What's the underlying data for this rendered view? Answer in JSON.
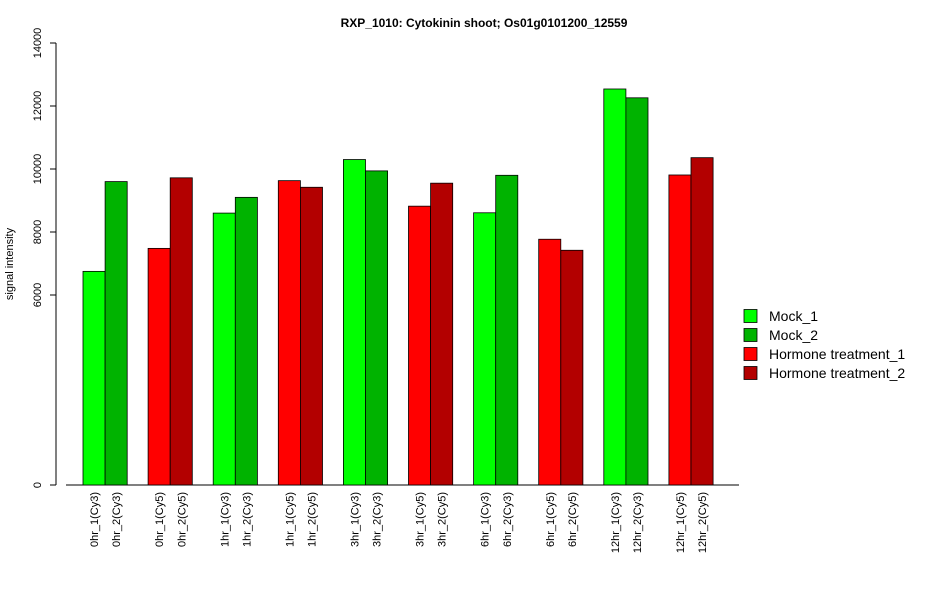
{
  "chart_data": {
    "type": "bar",
    "title": "RXP_1010: Cytokinin shoot; Os01g0101200_12559",
    "xlabel": "",
    "ylabel": "signal intensity",
    "ylim": [
      0,
      14000
    ],
    "scale": "y axis: linear from 6000 to 14000, compressed between 0 and 6000",
    "yticks": [
      0,
      6000,
      8000,
      10000,
      12000,
      14000
    ],
    "grid": false,
    "legend_position": "right",
    "legend": [
      {
        "name": "Mock_1",
        "color": "#00ff00"
      },
      {
        "name": "Mock_2",
        "color": "#00b300"
      },
      {
        "name": "Hormone treatment_1",
        "color": "#ff0000"
      },
      {
        "name": "Hormone treatment_2",
        "color": "#b30000"
      }
    ],
    "categories": [
      "0hr_1(Cy3)",
      "0hr_2(Cy3)",
      "0hr_1(Cy5)",
      "0hr_2(Cy5)",
      "1hr_1(Cy3)",
      "1hr_2(Cy3)",
      "1hr_1(Cy5)",
      "1hr_2(Cy5)",
      "3hr_1(Cy3)",
      "3hr_2(Cy3)",
      "3hr_1(Cy5)",
      "3hr_2(Cy5)",
      "6hr_1(Cy3)",
      "6hr_2(Cy3)",
      "6hr_1(Cy5)",
      "6hr_2(Cy5)",
      "12hr_1(Cy3)",
      "12hr_2(Cy3)",
      "12hr_1(Cy5)",
      "12hr_2(Cy5)"
    ],
    "values": [
      6750,
      9600,
      7480,
      9720,
      8600,
      9100,
      9630,
      9420,
      10300,
      9940,
      8820,
      9550,
      8610,
      9800,
      7770,
      7420,
      12540,
      12260,
      9810,
      10360
    ],
    "bar_colors": [
      "#00ff00",
      "#00b300",
      "#ff0000",
      "#b30000",
      "#00ff00",
      "#00b300",
      "#ff0000",
      "#b30000",
      "#00ff00",
      "#00b300",
      "#ff0000",
      "#b30000",
      "#00ff00",
      "#00b300",
      "#ff0000",
      "#b30000",
      "#00ff00",
      "#00b300",
      "#ff0000",
      "#b30000"
    ]
  }
}
